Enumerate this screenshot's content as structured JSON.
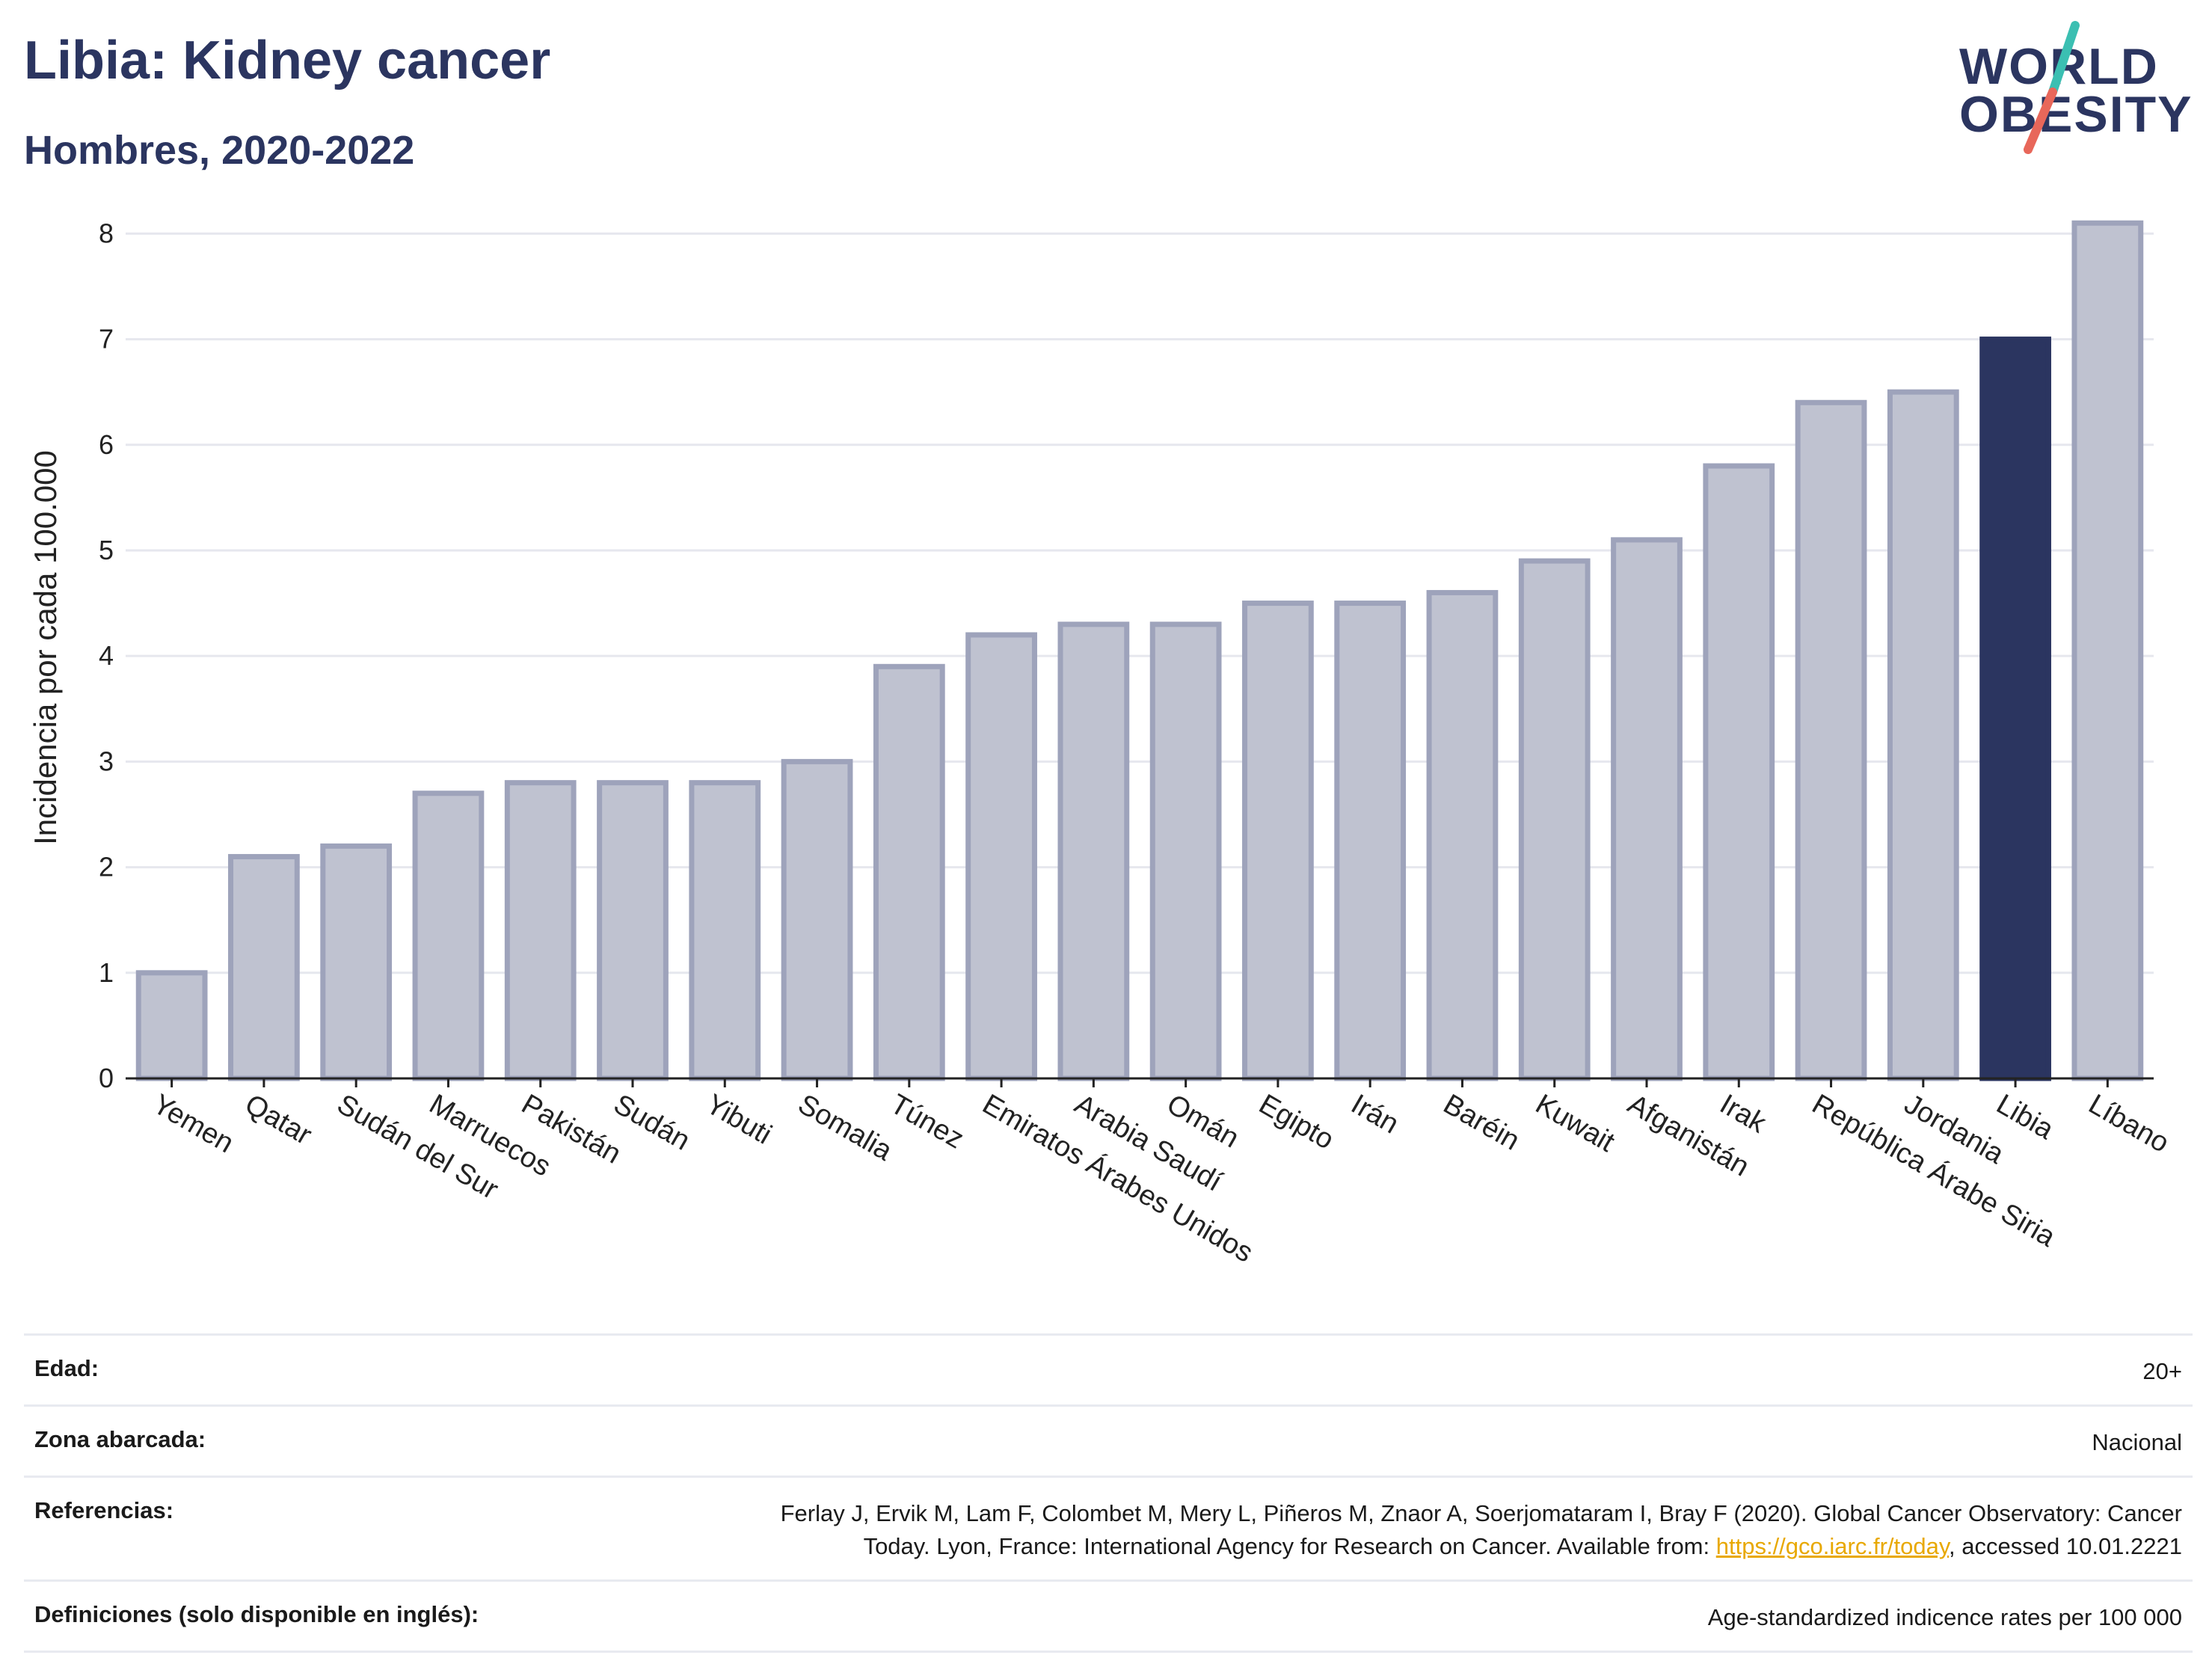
{
  "header": {
    "title": "Libia: Kidney cancer",
    "subtitle": "Hombres, 2020-2022"
  },
  "logo": {
    "line1": "WORLD",
    "line2": "OBESITY",
    "accent_teal": "#3bbfb2",
    "accent_coral": "#e8675a"
  },
  "colors": {
    "bar_default": "#bfc2d0",
    "bar_border": "#9ea3bb",
    "bar_highlight": "#2b3560",
    "grid": "#e6e7ee"
  },
  "chart_data": {
    "type": "bar",
    "ylabel": "Incidencia por cada 100.000",
    "ylim": [
      0,
      8.3
    ],
    "yticks": [
      0,
      1,
      2,
      3,
      4,
      5,
      6,
      7,
      8
    ],
    "grid": true,
    "highlight": "Libia",
    "categories": [
      "Yemen",
      "Qatar",
      "Sudán del Sur",
      "Marruecos",
      "Pakistán",
      "Sudán",
      "Yibuti",
      "Somalia",
      "Túnez",
      "Emiratos Árabes Unidos",
      "Arabia Saudí",
      "Omán",
      "Egipto",
      "Irán",
      "Baréin",
      "Kuwait",
      "Afganistán",
      "Irak",
      "República Árabe Siria",
      "Jordania",
      "Libia",
      "Líbano"
    ],
    "values": [
      1.0,
      2.1,
      2.2,
      2.7,
      2.8,
      2.8,
      2.8,
      3.0,
      3.9,
      4.2,
      4.3,
      4.3,
      4.5,
      4.5,
      4.6,
      4.9,
      5.1,
      5.8,
      6.4,
      6.5,
      7.0,
      8.1
    ]
  },
  "meta": {
    "age_label": "Edad:",
    "age_value": "20+",
    "area_label": "Zona abarcada:",
    "area_value": "Nacional",
    "refs_label": "Referencias:",
    "refs_line1": "Ferlay J, Ervik M, Lam F, Colombet M, Mery L, Piñeros M, Znaor A, Soerjomataram I, Bray F (2020). Global Cancer Observatory: Cancer",
    "refs_line2_pre": "Today. Lyon, France: International Agency for Research on Cancer. Available from: ",
    "refs_link": "https://gco.iarc.fr/today",
    "refs_line2_post": ", accessed 10.01.2221",
    "defs_label": "Definiciones (solo disponible en inglés):",
    "defs_value": "Age-standardized indicence rates per 100 000"
  }
}
